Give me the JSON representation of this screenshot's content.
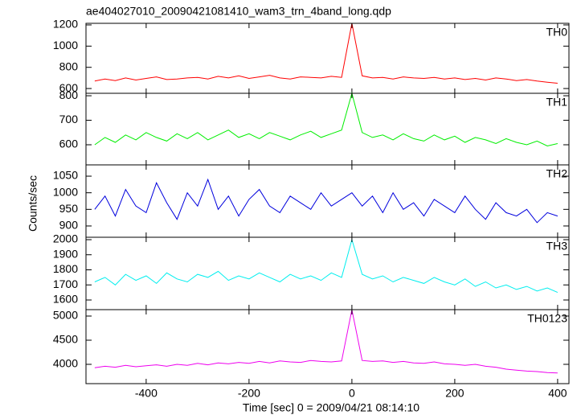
{
  "chart_data": [
    {
      "type": "line",
      "title": "ae404027010_20090421081410_wam3_trn_4band_long.qdp",
      "ylabel": "Counts/sec",
      "x": [
        -500,
        -480,
        -460,
        -440,
        -420,
        -400,
        -380,
        -360,
        -340,
        -320,
        -300,
        -280,
        -260,
        -240,
        -220,
        -200,
        -180,
        -160,
        -140,
        -120,
        -100,
        -80,
        -60,
        -40,
        -20,
        0,
        20,
        40,
        60,
        80,
        100,
        120,
        140,
        160,
        180,
        200,
        220,
        240,
        260,
        280,
        300,
        320,
        340,
        360,
        380,
        400
      ],
      "series": [
        {
          "name": "TH0",
          "color": "#ff0000",
          "values": [
            670,
            690,
            675,
            700,
            680,
            695,
            710,
            685,
            690,
            700,
            705,
            690,
            715,
            700,
            720,
            695,
            710,
            725,
            700,
            690,
            710,
            705,
            700,
            715,
            705,
            1215,
            720,
            700,
            705,
            690,
            710,
            700,
            695,
            705,
            690,
            700,
            685,
            695,
            680,
            700,
            690,
            675,
            685,
            670,
            660,
            650
          ]
        }
      ],
      "xlim": [
        -517,
        422
      ],
      "xticks": [
        -400,
        -200,
        0,
        200,
        400
      ],
      "ylim": [
        555,
        1215
      ],
      "yticks": [
        600,
        800,
        1000,
        1200
      ]
    },
    {
      "type": "line",
      "x": [
        -500,
        -480,
        -460,
        -440,
        -420,
        -400,
        -380,
        -360,
        -340,
        -320,
        -300,
        -280,
        -260,
        -240,
        -220,
        -200,
        -180,
        -160,
        -140,
        -120,
        -100,
        -80,
        -60,
        -40,
        -20,
        0,
        20,
        40,
        60,
        80,
        100,
        120,
        140,
        160,
        180,
        200,
        220,
        240,
        260,
        280,
        300,
        320,
        340,
        360,
        380,
        400
      ],
      "series": [
        {
          "name": "TH1",
          "color": "#00ee00",
          "values": [
            600,
            630,
            610,
            640,
            620,
            650,
            630,
            615,
            645,
            625,
            650,
            620,
            640,
            660,
            630,
            645,
            625,
            650,
            635,
            620,
            640,
            655,
            630,
            645,
            660,
            810,
            650,
            630,
            640,
            620,
            645,
            625,
            615,
            640,
            620,
            635,
            610,
            630,
            620,
            605,
            625,
            610,
            600,
            615,
            595,
            605
          ]
        }
      ],
      "xlim": [
        -517,
        422
      ],
      "xticks": [
        -400,
        -200,
        0,
        200,
        400
      ],
      "ylim": [
        518,
        810
      ],
      "yticks": [
        600,
        700,
        800
      ]
    },
    {
      "type": "line",
      "x": [
        -500,
        -480,
        -460,
        -440,
        -420,
        -400,
        -380,
        -360,
        -340,
        -320,
        -300,
        -280,
        -260,
        -240,
        -220,
        -200,
        -180,
        -160,
        -140,
        -120,
        -100,
        -80,
        -60,
        -40,
        -20,
        0,
        20,
        40,
        60,
        80,
        100,
        120,
        140,
        160,
        180,
        200,
        220,
        240,
        260,
        280,
        300,
        320,
        340,
        360,
        380,
        400
      ],
      "series": [
        {
          "name": "TH2",
          "color": "#0000dd",
          "values": [
            950,
            990,
            930,
            1010,
            960,
            940,
            1030,
            970,
            920,
            1000,
            960,
            1040,
            950,
            990,
            930,
            980,
            1010,
            960,
            940,
            990,
            970,
            950,
            1000,
            960,
            980,
            1000,
            960,
            990,
            940,
            1000,
            950,
            970,
            930,
            980,
            960,
            940,
            990,
            950,
            920,
            970,
            940,
            930,
            950,
            910,
            940,
            930
          ]
        }
      ],
      "xlim": [
        -517,
        422
      ],
      "xticks": [
        -400,
        -200,
        0,
        200,
        400
      ],
      "ylim": [
        866,
        1084
      ],
      "yticks": [
        900,
        950,
        1000,
        1050
      ]
    },
    {
      "type": "line",
      "x": [
        -500,
        -480,
        -460,
        -440,
        -420,
        -400,
        -380,
        -360,
        -340,
        -320,
        -300,
        -280,
        -260,
        -240,
        -220,
        -200,
        -180,
        -160,
        -140,
        -120,
        -100,
        -80,
        -60,
        -40,
        -20,
        0,
        20,
        40,
        60,
        80,
        100,
        120,
        140,
        160,
        180,
        200,
        220,
        240,
        260,
        280,
        300,
        320,
        340,
        360,
        380,
        400
      ],
      "series": [
        {
          "name": "TH3",
          "color": "#00eeee",
          "values": [
            1720,
            1750,
            1700,
            1770,
            1730,
            1760,
            1710,
            1780,
            1740,
            1720,
            1770,
            1750,
            1790,
            1730,
            1760,
            1740,
            1780,
            1750,
            1720,
            1770,
            1740,
            1760,
            1730,
            1780,
            1750,
            2000,
            1770,
            1740,
            1760,
            1720,
            1750,
            1730,
            1710,
            1750,
            1720,
            1700,
            1740,
            1690,
            1720,
            1680,
            1700,
            1670,
            1690,
            1660,
            1680,
            1650
          ]
        }
      ],
      "xlim": [
        -517,
        422
      ],
      "xticks": [
        -400,
        -200,
        0,
        200,
        400
      ],
      "ylim": [
        1536,
        2016
      ],
      "yticks": [
        1600,
        1700,
        1800,
        1900,
        2000
      ]
    },
    {
      "type": "line",
      "xlabel": "Time [sec] 0 = 2009/04/21 08:14:10",
      "x": [
        -500,
        -480,
        -460,
        -440,
        -420,
        -400,
        -380,
        -360,
        -340,
        -320,
        -300,
        -280,
        -260,
        -240,
        -220,
        -200,
        -180,
        -160,
        -140,
        -120,
        -100,
        -80,
        -60,
        -40,
        -20,
        0,
        20,
        40,
        60,
        80,
        100,
        120,
        140,
        160,
        180,
        200,
        220,
        240,
        260,
        280,
        300,
        320,
        340,
        360,
        380,
        400
      ],
      "series": [
        {
          "name": "TH0123",
          "color": "#ee00ee",
          "values": [
            3930,
            3960,
            3940,
            3980,
            3950,
            3970,
            3990,
            3960,
            4000,
            3980,
            4020,
            3990,
            4030,
            4010,
            4040,
            4020,
            4060,
            4030,
            4070,
            4050,
            4040,
            4080,
            4060,
            4050,
            4070,
            5130,
            4080,
            4060,
            4070,
            4040,
            4060,
            4030,
            4020,
            4050,
            4010,
            4000,
            3980,
            4000,
            3960,
            3940,
            3900,
            3880,
            3860,
            3850,
            3830,
            3820
          ]
        }
      ],
      "xlim": [
        -517,
        422
      ],
      "xticks": [
        -400,
        -200,
        0,
        200,
        400
      ],
      "ylim": [
        3600,
        5133
      ],
      "yticks": [
        4000,
        4500,
        5000
      ]
    }
  ]
}
